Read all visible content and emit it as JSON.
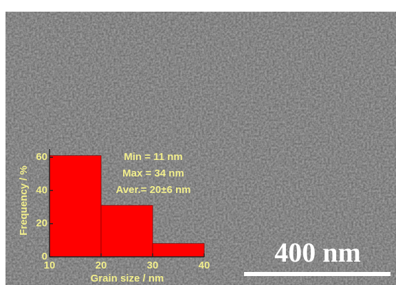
{
  "chart_data": {
    "type": "histogram",
    "bins": [
      10,
      20,
      30,
      40
    ],
    "values": [
      61,
      31,
      8
    ],
    "color": "#ff0000",
    "xlabel": "Grain size / nm",
    "ylabel": "Frequency / %",
    "xlim": [
      10,
      40
    ],
    "ylim": [
      0,
      65
    ],
    "xticks": [
      10,
      20,
      30,
      40
    ],
    "yticks": [
      0,
      20,
      40,
      60
    ],
    "annotations": [
      "Min = 11 nm",
      "Max = 34 nm",
      "Aver.= 20±6 nm"
    ],
    "scale_bar": "400 nm"
  }
}
